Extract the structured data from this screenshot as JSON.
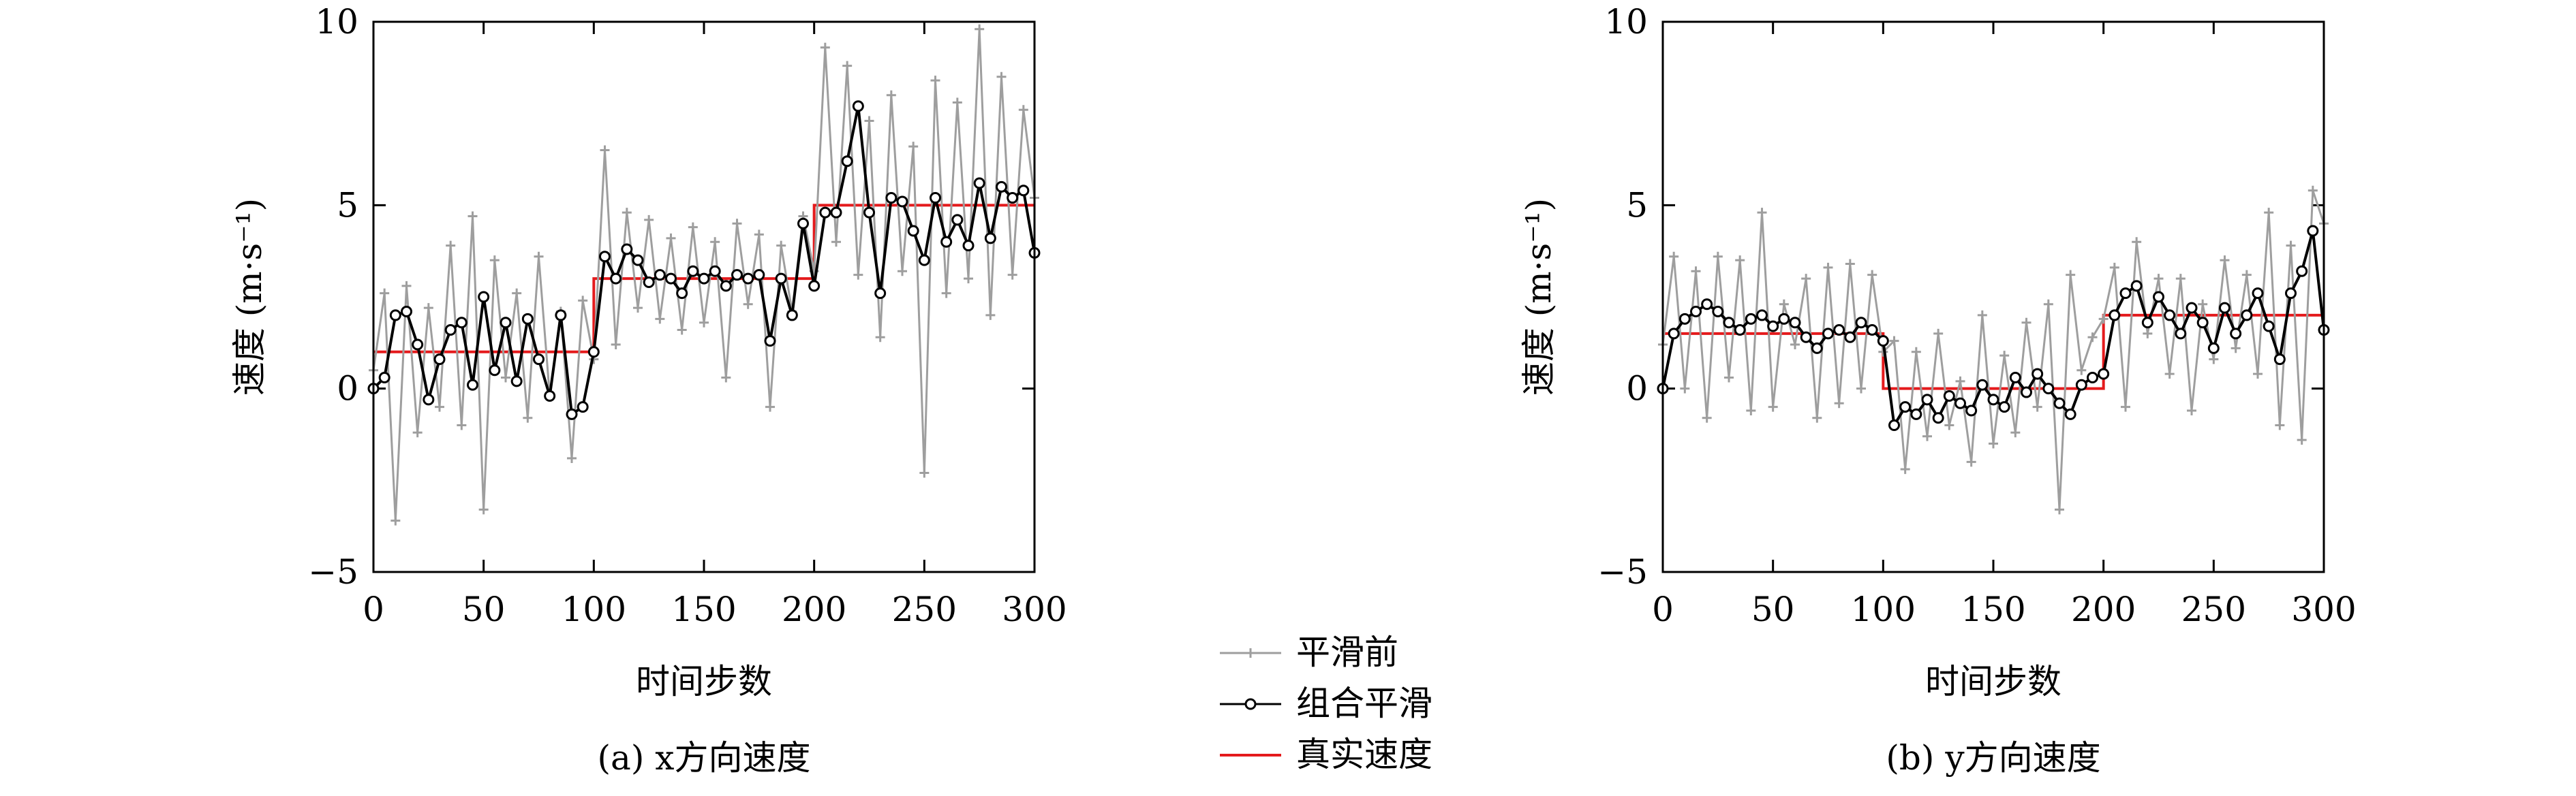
{
  "chart_data": [
    {
      "type": "line",
      "caption": "(a) x方向速度",
      "xlabel": "时间步数",
      "ylabel": "速度 (m·s⁻¹)",
      "xlim": [
        0,
        300
      ],
      "ylim": [
        -5,
        10
      ],
      "xticks": [
        0,
        50,
        100,
        150,
        200,
        250,
        300
      ],
      "yticks": [
        -5,
        0,
        5,
        10
      ],
      "true_speed": {
        "x": [
          0,
          100,
          100,
          200,
          200,
          300
        ],
        "y": [
          1,
          1,
          3,
          3,
          5,
          5
        ]
      },
      "series": [
        {
          "name": "平滑前",
          "color": "#9e9e9e",
          "marker": "plus",
          "x": [
            0,
            5,
            10,
            15,
            20,
            25,
            30,
            35,
            40,
            45,
            50,
            55,
            60,
            65,
            70,
            75,
            80,
            85,
            90,
            95,
            100,
            105,
            110,
            115,
            120,
            125,
            130,
            135,
            140,
            145,
            150,
            155,
            160,
            165,
            170,
            175,
            180,
            185,
            190,
            195,
            200,
            205,
            210,
            215,
            220,
            225,
            230,
            235,
            240,
            245,
            250,
            255,
            260,
            265,
            270,
            275,
            280,
            285,
            290,
            295,
            300
          ],
          "y": [
            0.5,
            2.6,
            -3.6,
            2.8,
            -1.2,
            2.2,
            -0.5,
            3.9,
            -1.0,
            4.7,
            -3.3,
            3.5,
            0.3,
            2.6,
            -0.8,
            3.6,
            -0.2,
            2.1,
            -1.9,
            2.4,
            0.8,
            6.5,
            1.2,
            4.8,
            2.2,
            4.6,
            1.9,
            4.1,
            1.6,
            4.4,
            1.8,
            4.0,
            0.3,
            4.5,
            2.3,
            4.2,
            -0.5,
            3.9,
            2.1,
            4.7,
            3.2,
            9.3,
            4.0,
            8.8,
            3.1,
            7.3,
            1.4,
            8.0,
            3.2,
            6.6,
            -2.3,
            8.4,
            2.6,
            7.8,
            3.0,
            9.8,
            2.0,
            8.5,
            3.1,
            7.6,
            5.2
          ]
        },
        {
          "name": "组合平滑",
          "color": "#000000",
          "marker": "circle",
          "x": [
            0,
            5,
            10,
            15,
            20,
            25,
            30,
            35,
            40,
            45,
            50,
            55,
            60,
            65,
            70,
            75,
            80,
            85,
            90,
            95,
            100,
            105,
            110,
            115,
            120,
            125,
            130,
            135,
            140,
            145,
            150,
            155,
            160,
            165,
            170,
            175,
            180,
            185,
            190,
            195,
            200,
            205,
            210,
            215,
            220,
            225,
            230,
            235,
            240,
            245,
            250,
            255,
            260,
            265,
            270,
            275,
            280,
            285,
            290,
            295,
            300
          ],
          "y": [
            0.0,
            0.3,
            2.0,
            2.1,
            1.2,
            -0.3,
            0.8,
            1.6,
            1.8,
            0.1,
            2.5,
            0.5,
            1.8,
            0.2,
            1.9,
            0.8,
            -0.2,
            2.0,
            -0.7,
            -0.5,
            1.0,
            3.6,
            3.0,
            3.8,
            3.5,
            2.9,
            3.1,
            3.0,
            2.6,
            3.2,
            3.0,
            3.2,
            2.8,
            3.1,
            3.0,
            3.1,
            1.3,
            3.0,
            2.0,
            4.5,
            2.8,
            4.8,
            4.8,
            6.2,
            7.7,
            4.8,
            2.6,
            5.2,
            5.1,
            4.3,
            3.5,
            5.2,
            4.0,
            4.6,
            3.9,
            5.6,
            4.1,
            5.5,
            5.2,
            5.4,
            3.7
          ]
        }
      ]
    },
    {
      "type": "line",
      "caption": "(b) y方向速度",
      "xlabel": "时间步数",
      "ylabel": "速度 (m·s⁻¹)",
      "xlim": [
        0,
        300
      ],
      "ylim": [
        -5,
        10
      ],
      "xticks": [
        0,
        50,
        100,
        150,
        200,
        250,
        300
      ],
      "yticks": [
        -5,
        0,
        5,
        10
      ],
      "true_speed": {
        "x": [
          0,
          100,
          100,
          200,
          200,
          300
        ],
        "y": [
          1.5,
          1.5,
          0,
          0,
          2,
          2
        ]
      },
      "series": [
        {
          "name": "平滑前",
          "color": "#9e9e9e",
          "marker": "plus",
          "x": [
            0,
            5,
            10,
            15,
            20,
            25,
            30,
            35,
            40,
            45,
            50,
            55,
            60,
            65,
            70,
            75,
            80,
            85,
            90,
            95,
            100,
            105,
            110,
            115,
            120,
            125,
            130,
            135,
            140,
            145,
            150,
            155,
            160,
            165,
            170,
            175,
            180,
            185,
            190,
            195,
            200,
            205,
            210,
            215,
            220,
            225,
            230,
            235,
            240,
            245,
            250,
            255,
            260,
            265,
            270,
            275,
            280,
            285,
            290,
            295,
            300
          ],
          "y": [
            1.2,
            3.6,
            0.0,
            3.2,
            -0.8,
            3.6,
            0.3,
            3.5,
            -0.6,
            4.8,
            -0.5,
            2.3,
            1.2,
            3.0,
            -0.8,
            3.3,
            -0.4,
            3.4,
            0.0,
            3.1,
            1.0,
            1.3,
            -2.2,
            1.0,
            -1.3,
            1.5,
            -1.0,
            0.2,
            -2.0,
            2.0,
            -1.5,
            0.9,
            -1.2,
            1.8,
            -0.5,
            2.3,
            -3.3,
            3.1,
            0.5,
            1.4,
            1.9,
            3.3,
            -0.5,
            4.0,
            1.5,
            3.0,
            0.4,
            3.0,
            -0.6,
            2.3,
            0.8,
            3.5,
            1.1,
            3.1,
            0.4,
            4.8,
            -1.0,
            3.9,
            -1.4,
            5.4,
            4.5
          ]
        },
        {
          "name": "组合平滑",
          "color": "#000000",
          "marker": "circle",
          "x": [
            0,
            5,
            10,
            15,
            20,
            25,
            30,
            35,
            40,
            45,
            50,
            55,
            60,
            65,
            70,
            75,
            80,
            85,
            90,
            95,
            100,
            105,
            110,
            115,
            120,
            125,
            130,
            135,
            140,
            145,
            150,
            155,
            160,
            165,
            170,
            175,
            180,
            185,
            190,
            195,
            200,
            205,
            210,
            215,
            220,
            225,
            230,
            235,
            240,
            245,
            250,
            255,
            260,
            265,
            270,
            275,
            280,
            285,
            290,
            295,
            300
          ],
          "y": [
            0.0,
            1.5,
            1.9,
            2.1,
            2.3,
            2.1,
            1.8,
            1.6,
            1.9,
            2.0,
            1.7,
            1.9,
            1.8,
            1.4,
            1.1,
            1.5,
            1.6,
            1.4,
            1.8,
            1.6,
            1.3,
            -1.0,
            -0.5,
            -0.7,
            -0.3,
            -0.8,
            -0.2,
            -0.4,
            -0.6,
            0.1,
            -0.3,
            -0.5,
            0.3,
            -0.1,
            0.4,
            0.0,
            -0.4,
            -0.7,
            0.1,
            0.3,
            0.4,
            2.0,
            2.6,
            2.8,
            1.8,
            2.5,
            2.0,
            1.5,
            2.2,
            1.8,
            1.1,
            2.2,
            1.5,
            2.0,
            2.6,
            1.7,
            0.8,
            2.6,
            3.2,
            4.3,
            1.6
          ]
        }
      ]
    }
  ],
  "legend": [
    {
      "label": "平滑前",
      "color": "#9e9e9e",
      "marker": "plus"
    },
    {
      "label": "组合平滑",
      "color": "#000000",
      "marker": "circle"
    },
    {
      "label": "真实速度",
      "color": "#e41a1c",
      "marker": "none"
    }
  ]
}
